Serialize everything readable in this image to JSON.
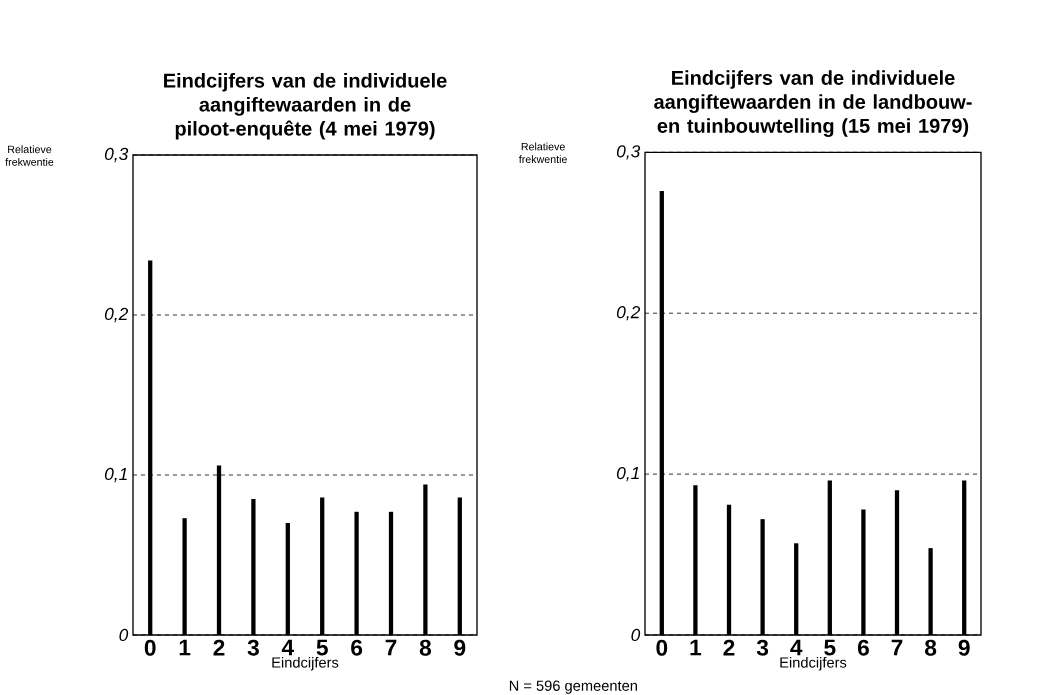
{
  "chart_data": [
    {
      "type": "bar",
      "title": "Eindcijfers van de individuele aangiftewaarden in de piloot-enquête (4 mei 1979)",
      "xlabel": "Eindcijfers",
      "ylabel": "Relatieve frekwentie",
      "categories": [
        "0",
        "1",
        "2",
        "3",
        "4",
        "5",
        "6",
        "7",
        "8",
        "9"
      ],
      "values": [
        0.234,
        0.073,
        0.106,
        0.085,
        0.07,
        0.086,
        0.077,
        0.077,
        0.094,
        0.086
      ],
      "color": "#000000",
      "ylim": [
        0,
        0.3
      ],
      "yticks": [
        {
          "value": 0,
          "label": "0"
        },
        {
          "value": 0.1,
          "label": "0,1"
        },
        {
          "value": 0.2,
          "label": "0,2"
        },
        {
          "value": 0.3,
          "label": "0,3"
        }
      ],
      "grid": "y",
      "annotations": [
        "N = 596 gemeenten"
      ]
    },
    {
      "type": "bar",
      "title": "Eindcijfers van de individuele aangiftewaarden in de landbouw- en tuinbouwtelling (15 mei 1979)",
      "xlabel": "Eindcijfers",
      "ylabel": "Relatieve frekwentie",
      "categories": [
        "0",
        "1",
        "2",
        "3",
        "4",
        "5",
        "6",
        "7",
        "8",
        "9"
      ],
      "values": [
        0.276,
        0.093,
        0.081,
        0.072,
        0.057,
        0.096,
        0.078,
        0.09,
        0.054,
        0.096
      ],
      "color": "#000000",
      "ylim": [
        0,
        0.3
      ],
      "yticks": [
        {
          "value": 0,
          "label": "0"
        },
        {
          "value": 0.1,
          "label": "0,1"
        },
        {
          "value": 0.2,
          "label": "0,2"
        },
        {
          "value": 0.3,
          "label": "0,3"
        }
      ],
      "grid": "y"
    }
  ]
}
